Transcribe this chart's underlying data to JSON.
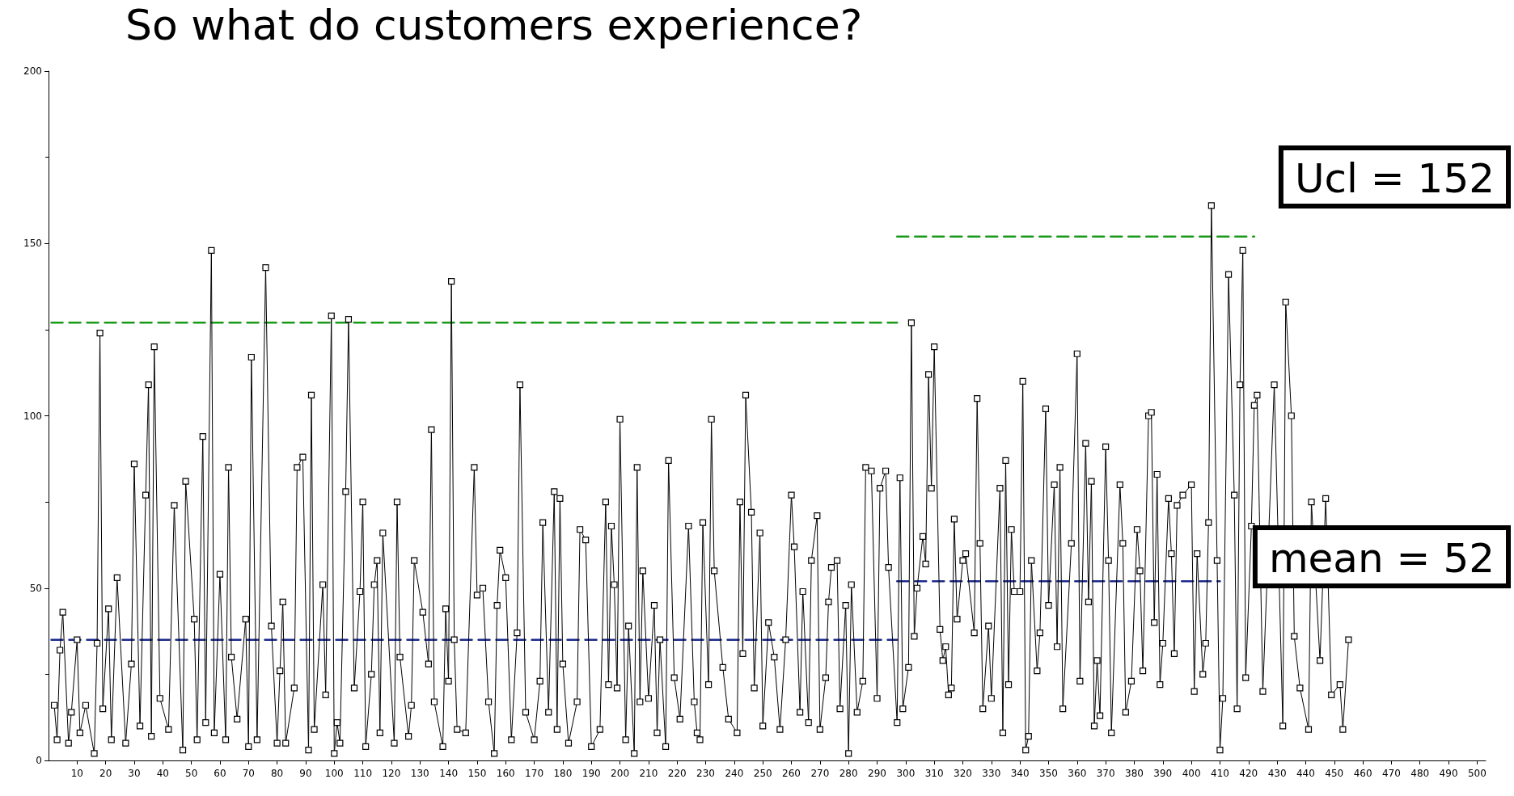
{
  "chart_data": {
    "type": "line",
    "title": "So what do customers experience?",
    "xlim": [
      0,
      503
    ],
    "xticks": [
      10,
      20,
      30,
      40,
      50,
      60,
      70,
      80,
      90,
      100,
      110,
      120,
      130,
      140,
      150,
      160,
      170,
      180,
      190,
      200,
      210,
      220,
      230,
      240,
      250,
      260,
      270,
      280,
      290,
      300,
      310,
      320,
      330,
      340,
      350,
      360,
      370,
      380,
      390,
      400,
      410,
      420,
      430,
      440,
      450,
      460,
      470,
      480,
      490,
      500
    ],
    "ylim": [
      0,
      200
    ],
    "yticks": [
      0,
      50,
      100,
      150,
      200
    ],
    "grid": false,
    "marker": "square",
    "line_style": "solid",
    "series": [
      {
        "color": "#000000",
        "x": [
          2,
          3,
          4,
          5,
          7,
          8,
          10,
          11,
          13,
          16,
          17,
          18,
          19,
          21,
          22,
          24,
          27,
          29,
          30,
          32,
          34,
          35,
          36,
          37,
          39,
          42,
          44,
          47,
          48,
          51,
          52,
          54,
          55,
          57,
          58,
          60,
          62,
          63,
          64,
          66,
          69,
          70,
          71,
          73,
          76,
          78,
          80,
          81,
          82,
          83,
          86,
          87,
          89,
          91,
          92,
          93,
          96,
          97,
          99,
          100,
          101,
          102,
          104,
          105,
          107,
          109,
          110,
          111,
          113,
          114,
          115,
          116,
          117,
          121,
          122,
          123,
          126,
          127,
          128,
          131,
          133,
          134,
          135,
          138,
          139,
          140,
          141,
          142,
          143,
          146,
          149,
          150,
          152,
          154,
          156,
          157,
          158,
          160,
          162,
          164,
          165,
          167,
          170,
          172,
          173,
          175,
          177,
          178,
          179,
          180,
          182,
          185,
          186,
          188,
          190,
          193,
          195,
          196,
          197,
          198,
          199,
          200,
          202,
          203,
          205,
          206,
          207,
          208,
          210,
          212,
          213,
          214,
          216,
          217,
          219,
          221,
          224,
          226,
          227,
          228,
          229,
          231,
          232,
          233,
          236,
          238,
          241,
          242,
          243,
          244,
          246,
          247,
          249,
          250,
          252,
          254,
          256,
          258,
          260,
          261,
          263,
          264,
          266,
          267,
          269,
          270,
          272,
          273,
          274,
          276,
          277,
          279,
          280,
          281,
          283,
          285,
          286,
          288,
          290,
          291,
          293,
          294,
          297,
          298,
          299,
          301,
          302,
          303,
          304,
          306,
          307,
          308,
          309,
          310,
          312,
          313,
          314,
          315,
          316,
          317,
          318,
          320,
          321,
          324,
          325,
          326,
          327,
          329,
          330,
          333,
          334,
          335,
          336,
          337,
          338,
          340,
          341,
          342,
          343,
          344,
          346,
          347,
          349,
          350,
          352,
          353,
          354,
          355,
          358,
          360,
          361,
          363,
          364,
          365,
          366,
          367,
          368,
          370,
          371,
          372,
          375,
          376,
          377,
          379,
          381,
          382,
          383,
          385,
          386,
          387,
          388,
          389,
          390,
          392,
          393,
          394,
          395,
          397,
          400,
          401,
          402,
          404,
          405,
          406,
          407,
          409,
          410,
          411,
          413,
          415,
          416,
          417,
          418,
          419,
          421,
          422,
          423,
          425,
          429,
          432,
          433,
          435,
          436,
          438,
          441,
          442,
          445,
          447,
          449,
          452,
          453,
          455
        ],
        "values": [
          16,
          6,
          32,
          43,
          5,
          14,
          35,
          8,
          16,
          2,
          34,
          124,
          15,
          44,
          6,
          53,
          5,
          28,
          86,
          10,
          77,
          109,
          7,
          120,
          18,
          9,
          74,
          3,
          81,
          41,
          6,
          94,
          11,
          148,
          8,
          54,
          6,
          85,
          30,
          12,
          41,
          4,
          117,
          6,
          143,
          39,
          5,
          26,
          46,
          5,
          21,
          85,
          88,
          3,
          106,
          9,
          51,
          19,
          129,
          2,
          11,
          5,
          78,
          128,
          21,
          49,
          75,
          4,
          25,
          51,
          58,
          8,
          66,
          5,
          75,
          30,
          7,
          16,
          58,
          43,
          28,
          96,
          17,
          4,
          44,
          23,
          139,
          35,
          9,
          8,
          85,
          48,
          50,
          17,
          2,
          45,
          61,
          53,
          6,
          37,
          109,
          14,
          6,
          23,
          69,
          14,
          78,
          9,
          76,
          28,
          5,
          17,
          67,
          64,
          4,
          9,
          75,
          22,
          68,
          51,
          21,
          99,
          6,
          39,
          2,
          85,
          17,
          55,
          18,
          45,
          8,
          35,
          4,
          87,
          24,
          12,
          68,
          17,
          8,
          6,
          69,
          22,
          99,
          55,
          27,
          12,
          8,
          75,
          31,
          106,
          72,
          21,
          66,
          10,
          40,
          30,
          9,
          35,
          77,
          62,
          14,
          49,
          11,
          58,
          71,
          9,
          24,
          46,
          56,
          58,
          15,
          45,
          2,
          51,
          14,
          23,
          85,
          84,
          18,
          79,
          84,
          56,
          11,
          82,
          15,
          27,
          127,
          36,
          50,
          65,
          57,
          112,
          79,
          120,
          38,
          29,
          33,
          19,
          21,
          70,
          41,
          58,
          60,
          37,
          105,
          63,
          15,
          39,
          18,
          79,
          8,
          87,
          22,
          67,
          49,
          49,
          110,
          3,
          7,
          58,
          26,
          37,
          102,
          45,
          80,
          33,
          85,
          15,
          63,
          118,
          23,
          92,
          46,
          81,
          10,
          29,
          13,
          91,
          58,
          8,
          80,
          63,
          14,
          23,
          67,
          55,
          26,
          100,
          101,
          40,
          83,
          22,
          34,
          76,
          60,
          31,
          74,
          77,
          80,
          20,
          60,
          25,
          34,
          69,
          161,
          58,
          3,
          18,
          141,
          77,
          15,
          109,
          148,
          24,
          68,
          103,
          106,
          20,
          109,
          10,
          133,
          100,
          36,
          21,
          9,
          75,
          29,
          76,
          19,
          22,
          9,
          35
        ]
      },
      {
        "color": "#1a9a1a",
        "x": [
          1,
          297
        ],
        "values": [
          127,
          127
        ],
        "line_style": "dashed",
        "marker": "none"
      },
      {
        "color": "#1a9a1a",
        "x": [
          297,
          422
        ],
        "values": [
          152,
          152
        ],
        "line_style": "dashed",
        "marker": "none"
      },
      {
        "color": "#1c2a8c",
        "x": [
          1,
          297
        ],
        "values": [
          35,
          35
        ],
        "line_style": "dashed",
        "marker": "none"
      },
      {
        "color": "#1c2a8c",
        "x": [
          297,
          410
        ],
        "values": [
          52,
          52
        ],
        "line_style": "dashed",
        "marker": "none"
      }
    ],
    "annotations": [
      "Ucl = 152",
      "mean = 52"
    ]
  }
}
